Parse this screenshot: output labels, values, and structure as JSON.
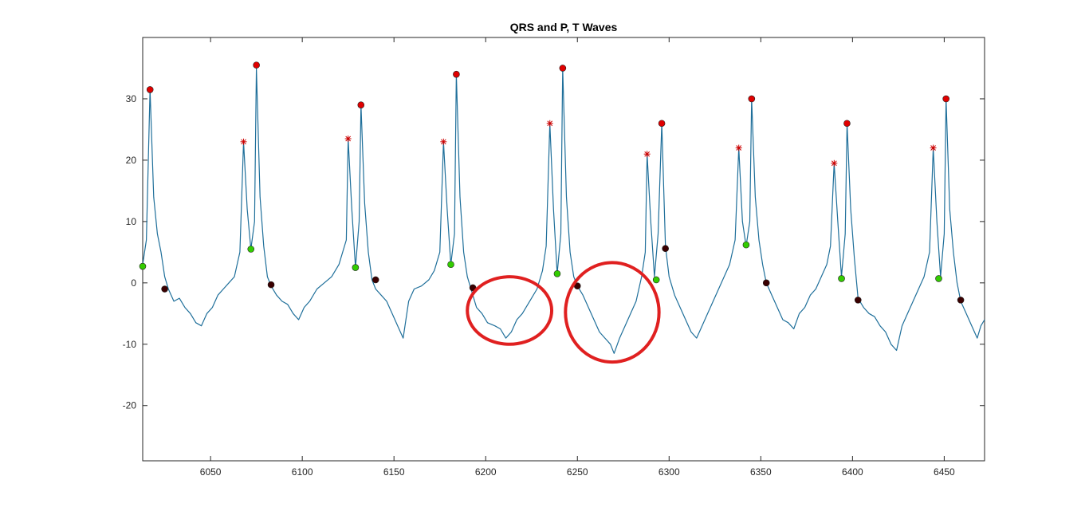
{
  "chart_data": {
    "type": "line",
    "title": "QRS and P, T Waves",
    "xlabel": "",
    "ylabel": "",
    "xlim": [
      6013,
      6472
    ],
    "ylim": [
      -29,
      40
    ],
    "grid": false,
    "x_ticks": [
      6050,
      6100,
      6150,
      6200,
      6250,
      6300,
      6350,
      6400,
      6450
    ],
    "y_ticks": [
      -20,
      -10,
      0,
      10,
      20,
      30
    ],
    "x_tick_labels": [
      "6050",
      "6100",
      "6150",
      "6200",
      "6250",
      "6300",
      "6350",
      "6400",
      "6450"
    ],
    "y_tick_labels": [
      "-20",
      "-10",
      "0",
      "10",
      "20",
      "30"
    ],
    "colors": {
      "signal": "#1f6f9a",
      "r_peak": "#e00000",
      "p_star": "#cc0000",
      "onset": "#33cc00",
      "offset": "#3a0000",
      "annotation": "#e02020"
    },
    "series": [
      {
        "marker": "line",
        "points": [
          [
            6013,
            3
          ],
          [
            6015,
            7
          ],
          [
            6017,
            31.5
          ],
          [
            6019,
            14
          ],
          [
            6021,
            8
          ],
          [
            6023,
            5
          ],
          [
            6025,
            1
          ],
          [
            6027,
            -1
          ],
          [
            6030,
            -3
          ],
          [
            6033,
            -2.5
          ],
          [
            6036,
            -4
          ],
          [
            6039,
            -5
          ],
          [
            6042,
            -6.5
          ],
          [
            6045,
            -7
          ],
          [
            6048,
            -5
          ],
          [
            6051,
            -4
          ],
          [
            6054,
            -2
          ],
          [
            6057,
            -1
          ],
          [
            6060,
            0
          ],
          [
            6063,
            1
          ],
          [
            6066,
            5
          ],
          [
            6068,
            23
          ],
          [
            6070,
            12
          ],
          [
            6072,
            5.5
          ],
          [
            6074,
            10
          ],
          [
            6075,
            35
          ],
          [
            6077,
            14
          ],
          [
            6079,
            6
          ],
          [
            6081,
            1
          ],
          [
            6083,
            -0.5
          ],
          [
            6086,
            -2
          ],
          [
            6089,
            -3
          ],
          [
            6092,
            -3.5
          ],
          [
            6095,
            -5
          ],
          [
            6098,
            -6
          ],
          [
            6101,
            -4
          ],
          [
            6104,
            -3
          ],
          [
            6108,
            -1
          ],
          [
            6112,
            0
          ],
          [
            6116,
            1
          ],
          [
            6120,
            3
          ],
          [
            6124,
            7
          ],
          [
            6125,
            23.5
          ],
          [
            6127,
            12
          ],
          [
            6129,
            2.5
          ],
          [
            6131,
            10
          ],
          [
            6132,
            29
          ],
          [
            6134,
            13
          ],
          [
            6136,
            5
          ],
          [
            6138,
            0.5
          ],
          [
            6140,
            -1
          ],
          [
            6143,
            -2
          ],
          [
            6146,
            -3
          ],
          [
            6149,
            -5
          ],
          [
            6152,
            -7
          ],
          [
            6155,
            -9
          ],
          [
            6158,
            -3
          ],
          [
            6161,
            -1
          ],
          [
            6165,
            -0.5
          ],
          [
            6169,
            0.5
          ],
          [
            6172,
            2
          ],
          [
            6175,
            5
          ],
          [
            6177,
            23
          ],
          [
            6179,
            12
          ],
          [
            6181,
            3
          ],
          [
            6183,
            8
          ],
          [
            6184,
            34
          ],
          [
            6186,
            14
          ],
          [
            6188,
            5
          ],
          [
            6190,
            1
          ],
          [
            6192,
            -1
          ],
          [
            6195,
            -4
          ],
          [
            6198,
            -5
          ],
          [
            6201,
            -6.5
          ],
          [
            6205,
            -7
          ],
          [
            6208,
            -7.5
          ],
          [
            6211,
            -9
          ],
          [
            6214,
            -8
          ],
          [
            6217,
            -6
          ],
          [
            6220,
            -5
          ],
          [
            6224,
            -3
          ],
          [
            6228,
            -1
          ],
          [
            6231,
            2
          ],
          [
            6233,
            6
          ],
          [
            6235,
            26
          ],
          [
            6237,
            12
          ],
          [
            6239,
            1.5
          ],
          [
            6241,
            8
          ],
          [
            6242,
            35
          ],
          [
            6244,
            14
          ],
          [
            6246,
            5
          ],
          [
            6248,
            1
          ],
          [
            6250,
            -0.5
          ],
          [
            6253,
            -2
          ],
          [
            6256,
            -4
          ],
          [
            6259,
            -6
          ],
          [
            6262,
            -8
          ],
          [
            6265,
            -9
          ],
          [
            6268,
            -10
          ],
          [
            6270,
            -11.5
          ],
          [
            6273,
            -9
          ],
          [
            6276,
            -7
          ],
          [
            6279,
            -5
          ],
          [
            6282,
            -3
          ],
          [
            6285,
            1
          ],
          [
            6287,
            5
          ],
          [
            6288,
            21
          ],
          [
            6290,
            10
          ],
          [
            6292,
            1
          ],
          [
            6294,
            8
          ],
          [
            6296,
            26
          ],
          [
            6298,
            6
          ],
          [
            6300,
            1
          ],
          [
            6303,
            -2
          ],
          [
            6306,
            -4
          ],
          [
            6309,
            -6
          ],
          [
            6312,
            -8
          ],
          [
            6315,
            -9
          ],
          [
            6318,
            -7
          ],
          [
            6321,
            -5
          ],
          [
            6324,
            -3
          ],
          [
            6327,
            -1
          ],
          [
            6330,
            1
          ],
          [
            6333,
            3
          ],
          [
            6336,
            7
          ],
          [
            6338,
            22
          ],
          [
            6340,
            10
          ],
          [
            6342,
            6
          ],
          [
            6344,
            10
          ],
          [
            6345,
            30
          ],
          [
            6347,
            14
          ],
          [
            6349,
            7
          ],
          [
            6351,
            3
          ],
          [
            6353,
            0
          ],
          [
            6356,
            -2
          ],
          [
            6359,
            -4
          ],
          [
            6362,
            -6
          ],
          [
            6365,
            -6.5
          ],
          [
            6368,
            -7.5
          ],
          [
            6371,
            -5
          ],
          [
            6374,
            -4
          ],
          [
            6377,
            -2
          ],
          [
            6380,
            -1
          ],
          [
            6383,
            1
          ],
          [
            6386,
            3
          ],
          [
            6388,
            6
          ],
          [
            6390,
            19.5
          ],
          [
            6392,
            10
          ],
          [
            6394,
            1
          ],
          [
            6396,
            8
          ],
          [
            6397,
            26
          ],
          [
            6399,
            12
          ],
          [
            6401,
            4
          ],
          [
            6403,
            -2.5
          ],
          [
            6406,
            -4
          ],
          [
            6409,
            -5
          ],
          [
            6412,
            -5.5
          ],
          [
            6415,
            -7
          ],
          [
            6418,
            -8
          ],
          [
            6421,
            -10
          ],
          [
            6424,
            -11
          ],
          [
            6427,
            -7
          ],
          [
            6430,
            -5
          ],
          [
            6433,
            -3
          ],
          [
            6436,
            -1
          ],
          [
            6439,
            1
          ],
          [
            6442,
            5
          ],
          [
            6444,
            22
          ],
          [
            6446,
            10
          ],
          [
            6448,
            1
          ],
          [
            6450,
            8
          ],
          [
            6451,
            30
          ],
          [
            6453,
            12
          ],
          [
            6455,
            5
          ],
          [
            6457,
            0
          ],
          [
            6459,
            -3
          ],
          [
            6462,
            -5
          ],
          [
            6465,
            -7
          ],
          [
            6468,
            -9
          ],
          [
            6470,
            -7
          ],
          [
            6472,
            -6
          ]
        ]
      },
      {
        "marker": "red-dot",
        "points": [
          [
            6017,
            31.5
          ],
          [
            6075,
            35.5
          ],
          [
            6132,
            29
          ],
          [
            6184,
            34
          ],
          [
            6242,
            35
          ],
          [
            6296,
            26
          ],
          [
            6345,
            30
          ],
          [
            6397,
            26
          ],
          [
            6451,
            30
          ]
        ]
      },
      {
        "marker": "red-star",
        "points": [
          [
            6068,
            23
          ],
          [
            6125,
            23.5
          ],
          [
            6177,
            23
          ],
          [
            6235,
            26
          ],
          [
            6288,
            21
          ],
          [
            6338,
            22
          ],
          [
            6390,
            19.5
          ],
          [
            6444,
            22
          ]
        ]
      },
      {
        "marker": "green-dot",
        "points": [
          [
            6013,
            2.7
          ],
          [
            6072,
            5.5
          ],
          [
            6129,
            2.5
          ],
          [
            6181,
            3
          ],
          [
            6239,
            1.5
          ],
          [
            6293,
            0.5
          ],
          [
            6342,
            6.2
          ],
          [
            6394,
            0.7
          ],
          [
            6447,
            0.7
          ]
        ]
      },
      {
        "marker": "dark-dot",
        "points": [
          [
            6025,
            -1
          ],
          [
            6083,
            -0.3
          ],
          [
            6140,
            0.5
          ],
          [
            6193,
            -0.8
          ],
          [
            6250,
            -0.5
          ],
          [
            6298,
            5.6
          ],
          [
            6353,
            0
          ],
          [
            6403,
            -2.8
          ],
          [
            6459,
            -2.8
          ]
        ]
      }
    ],
    "annotations": [
      {
        "shape": "ellipse",
        "cx": 6213,
        "cy": -4.5,
        "rx": 23,
        "ry": 5.5
      },
      {
        "shape": "ellipse",
        "cx": 6269,
        "cy": -4.8,
        "rx": 25.5,
        "ry": 8.1
      }
    ]
  }
}
